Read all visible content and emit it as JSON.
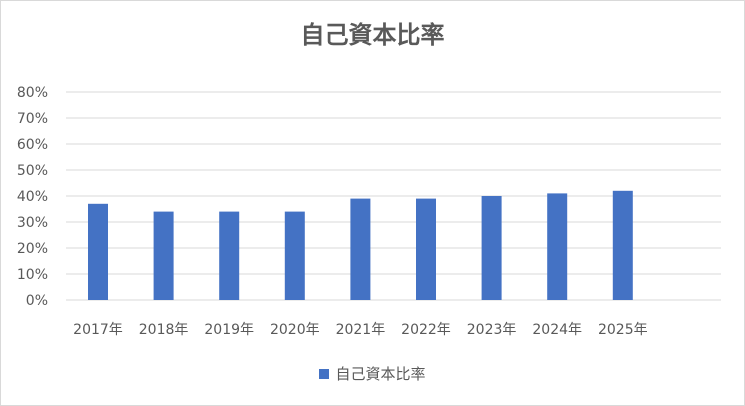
{
  "chart_data": {
    "type": "bar",
    "title": "自己資本比率",
    "categories": [
      "2017年",
      "2018年",
      "2019年",
      "2020年",
      "2021年",
      "2022年",
      "2023年",
      "2024年",
      "2025年"
    ],
    "series": [
      {
        "name": "自己資本比率",
        "values": [
          37,
          34,
          34,
          34,
          39,
          39,
          40,
          41,
          42
        ],
        "color": "#4472c4"
      }
    ],
    "yticks": [
      "0%",
      "10%",
      "20%",
      "30%",
      "40%",
      "50%",
      "60%",
      "70%",
      "80%"
    ],
    "ylim": [
      0,
      80
    ],
    "grid": true,
    "legend": "bottom"
  }
}
